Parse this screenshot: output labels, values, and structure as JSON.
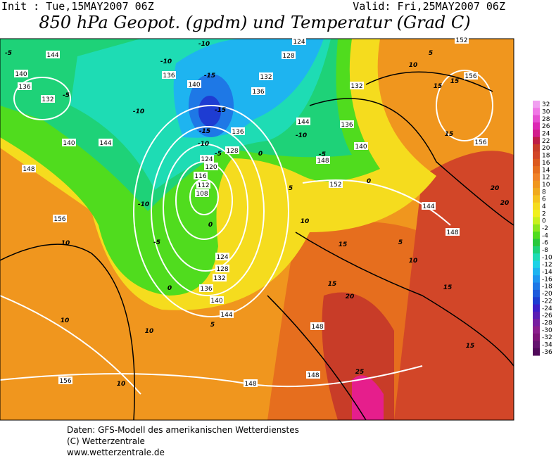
{
  "header": {
    "init": "Init : Tue,15MAY2007 06Z",
    "valid": "Valid: Fri,25MAY2007 06Z",
    "title": "850 hPa Geopot. (gpdm) und Temperatur (Grad C)"
  },
  "height_labels": [
    144,
    140,
    136,
    132,
    140,
    144,
    148,
    156,
    156,
    136,
    140,
    132,
    136,
    124,
    128,
    132,
    136,
    144,
    140,
    148,
    152,
    144,
    148,
    152,
    156,
    156,
    136,
    128,
    124,
    120,
    116,
    112,
    108,
    124,
    128,
    132,
    136,
    140,
    144,
    148,
    148,
    148
  ],
  "temperature_labels": [
    -5,
    -10,
    -10,
    -15,
    -15,
    -15,
    -10,
    -5,
    0,
    -10,
    -5,
    0,
    5,
    10,
    -10,
    -5,
    0,
    0,
    5,
    10,
    10,
    10,
    10,
    15,
    15,
    20,
    25,
    15,
    15,
    10,
    5,
    20,
    20,
    15,
    15,
    15,
    5,
    10,
    -10,
    -5
  ],
  "colorbar": {
    "levels": [
      32,
      30,
      28,
      26,
      24,
      22,
      20,
      18,
      16,
      14,
      12,
      10,
      8,
      6,
      4,
      2,
      0,
      -2,
      -4,
      -6,
      -8,
      -10,
      -12,
      -14,
      -16,
      -18,
      -20,
      -22,
      -24,
      -26,
      -28,
      -30,
      -32,
      -34,
      -36
    ],
    "colors": [
      "#f0a0f0",
      "#f078e6",
      "#e650d2",
      "#dc28b4",
      "#d21e8c",
      "#be1e46",
      "#c83c28",
      "#d24628",
      "#dc5a1e",
      "#e66e1e",
      "#f08228",
      "#f0961e",
      "#f0aa1e",
      "#f5c31e",
      "#f5dc1e",
      "#f0f01e",
      "#c8f01e",
      "#8ce61e",
      "#50dc1e",
      "#28c83c",
      "#1ed278",
      "#1edcb4",
      "#1ed2e6",
      "#1eb4f0",
      "#1e96f0",
      "#1e78e6",
      "#1e5adc",
      "#1e3cd2",
      "#3c1ec8",
      "#5a1eb4",
      "#781ea0",
      "#8c1e8c",
      "#7d1478",
      "#64146e",
      "#500a5a"
    ]
  },
  "footer": [
    "Daten: GFS-Modell des amerikanischen Wetterdienstes",
    "(C) Wetterzentrale",
    "www.wetterzentrale.de"
  ]
}
